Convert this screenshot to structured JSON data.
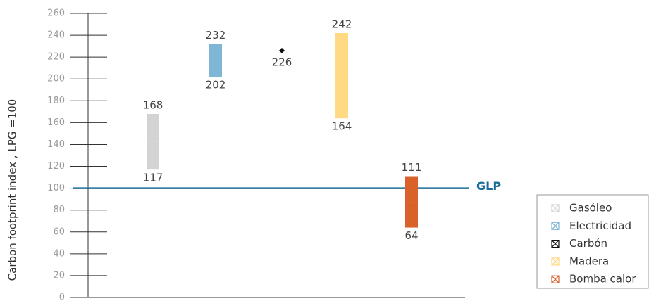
{
  "chart_data": {
    "type": "range",
    "y_label": "Carbon footprint index , LPG =100",
    "categories": [
      "Gasóleo",
      "Electricidad",
      "Carbón",
      "Madera",
      "Bomba calor"
    ],
    "colors": [
      "#d3d3d3",
      "#7fb6d6",
      "#111111",
      "#ffd983",
      "#d9622b"
    ],
    "low": [
      117,
      202,
      null,
      164,
      64
    ],
    "high": [
      168,
      232,
      226,
      242,
      111
    ],
    "reference": {
      "value": 100,
      "label": "GLP",
      "color": "#1a6e99"
    },
    "ylim": [
      0,
      260
    ],
    "yticks": [
      0,
      20,
      40,
      60,
      80,
      100,
      120,
      140,
      160,
      180,
      200,
      220,
      240,
      260
    ],
    "legend": "bottom-right"
  }
}
